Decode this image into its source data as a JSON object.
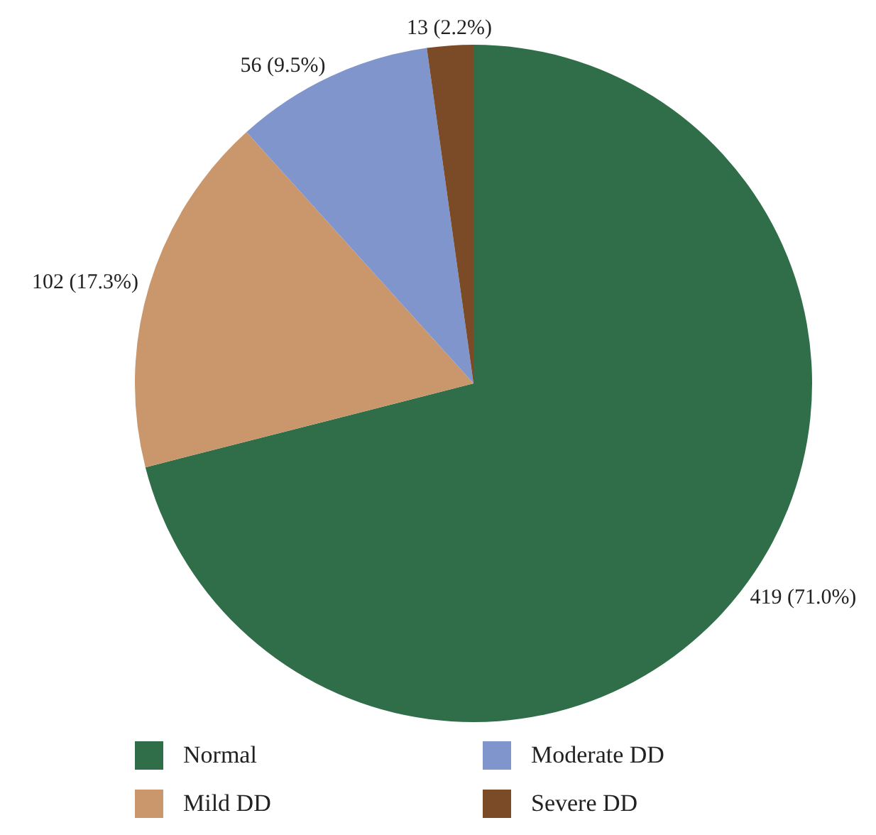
{
  "chart_data": {
    "type": "pie",
    "categories": [
      "Normal",
      "Mild DD",
      "Moderate DD",
      "Severe DD"
    ],
    "values": [
      419,
      102,
      56,
      13
    ],
    "colors": [
      "#2f6e48",
      "#c9976b",
      "#8095cb",
      "#7b4b28"
    ],
    "value_labels": [
      "419 (71.0%)",
      "102 (17.3%)",
      "56 (9.5%)",
      "13 (2.2%)"
    ],
    "legend": "bottom"
  }
}
